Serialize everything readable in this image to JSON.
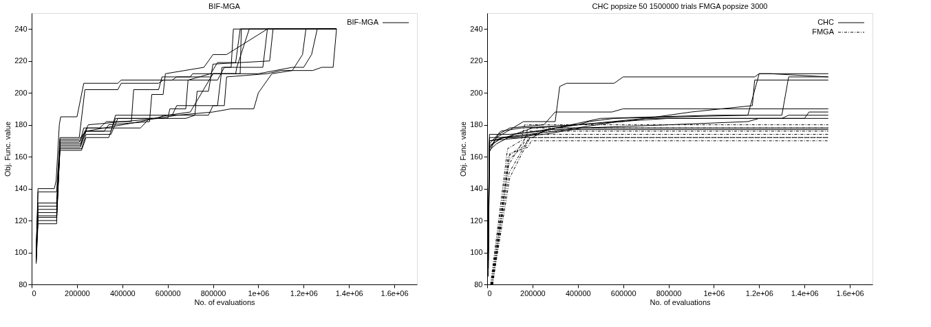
{
  "chart_data": [
    {
      "type": "line",
      "title": "BIF-MGA",
      "xlabel": "No. of evaluations",
      "ylabel": "Obj. Func. value",
      "xlim": [
        0,
        1700000
      ],
      "ylim": [
        80,
        250
      ],
      "xticks": [
        0,
        200000,
        400000,
        600000,
        800000,
        {
          "value": 1000000,
          "label": "1e+06"
        },
        {
          "value": 1200000,
          "label": "1.2e+06"
        },
        {
          "value": 1400000,
          "label": "1.4e+06"
        },
        {
          "value": 1600000,
          "label": "1.6e+06"
        }
      ],
      "yticks": [
        80,
        100,
        120,
        140,
        160,
        180,
        200,
        220,
        240
      ],
      "grid": false,
      "legend": "top right",
      "marker": "none",
      "series": [
        {
          "name": "BIF-MGA",
          "color": "#000000",
          "line_style": "solid",
          "x": [
            20000,
            28000,
            100000,
            108000,
            122000,
            128000,
            200000,
            230000,
            380000,
            395000,
            620000,
            640000,
            790000,
            800000,
            900000,
            905000,
            960000,
            1345000
          ],
          "values": [
            100,
            140,
            140,
            145,
            180,
            185,
            185,
            206,
            206,
            208,
            208,
            210,
            210,
            212,
            212,
            216,
            240,
            240
          ]
        },
        {
          "color": "#000000",
          "line_style": "solid",
          "x": [
            20000,
            28000,
            110000,
            125000,
            210000,
            235000,
            380000,
            395000,
            560000,
            580000,
            820000,
            850000,
            1020000,
            1040000,
            1345000
          ],
          "values": [
            95,
            138,
            138,
            172,
            172,
            202,
            202,
            206,
            206,
            208,
            208,
            216,
            216,
            240,
            240
          ]
        },
        {
          "color": "#000000",
          "line_style": "solid",
          "x": [
            20000,
            28000,
            110000,
            125000,
            215000,
            230000,
            300000,
            330000,
            440000,
            450000,
            560000,
            575000,
            700000,
            710000,
            920000,
            925000,
            1345000
          ],
          "values": [
            105,
            131,
            131,
            170,
            170,
            178,
            178,
            182,
            182,
            202,
            202,
            210,
            210,
            212,
            212,
            240,
            240
          ]
        },
        {
          "color": "#000000",
          "line_style": "solid",
          "x": [
            20000,
            28000,
            110000,
            125000,
            215000,
            235000,
            320000,
            340000,
            520000,
            530000,
            580000,
            590000,
            760000,
            800000,
            860000,
            1040000,
            1345000
          ],
          "values": [
            100,
            129,
            129,
            168,
            168,
            176,
            176,
            180,
            182,
            199,
            199,
            212,
            216,
            224,
            224,
            240,
            240
          ]
        },
        {
          "color": "#000000",
          "line_style": "solid",
          "x": [
            20000,
            28000,
            110000,
            125000,
            215000,
            240000,
            350000,
            370000,
            620000,
            640000,
            820000,
            840000,
            880000,
            890000,
            1345000
          ],
          "values": [
            98,
            127,
            127,
            166,
            166,
            176,
            176,
            186,
            186,
            192,
            192,
            216,
            216,
            240,
            240
          ]
        },
        {
          "color": "#000000",
          "line_style": "solid",
          "x": [
            20000,
            28000,
            110000,
            125000,
            220000,
            240000,
            350000,
            380000,
            600000,
            610000,
            680000,
            690000,
            790000,
            820000,
            900000,
            920000,
            1345000
          ],
          "values": [
            96,
            125,
            125,
            165,
            165,
            174,
            174,
            184,
            184,
            190,
            190,
            208,
            212,
            219,
            219,
            240,
            240
          ]
        },
        {
          "color": "#000000",
          "line_style": "solid",
          "x": [
            20000,
            28000,
            110000,
            125000,
            220000,
            240000,
            340000,
            370000,
            560000,
            580000,
            720000,
            730000,
            780000,
            800000,
            1050000,
            1065000,
            1345000
          ],
          "values": [
            94,
            122,
            122,
            164,
            164,
            172,
            172,
            184,
            184,
            186,
            186,
            201,
            201,
            218,
            220,
            240,
            240
          ]
        },
        {
          "color": "#000000",
          "line_style": "solid",
          "x": [
            20000,
            28000,
            110000,
            125000,
            215000,
            245000,
            480000,
            520000,
            680000,
            720000,
            780000,
            800000,
            850000,
            860000,
            1040000,
            1100000,
            1240000,
            1280000,
            1330000,
            1345000
          ],
          "values": [
            93,
            118,
            118,
            167,
            167,
            178,
            178,
            184,
            184,
            186,
            186,
            192,
            192,
            210,
            212,
            214,
            214,
            216,
            216,
            240
          ]
        },
        {
          "color": "#000000",
          "line_style": "solid",
          "x": [
            20000,
            28000,
            110000,
            125000,
            210000,
            250000,
            560000,
            640000,
            800000,
            880000,
            980000,
            1000000,
            1020000,
            1060000,
            1150000,
            1195000,
            1210000,
            1345000
          ],
          "values": [
            100,
            120,
            120,
            169,
            169,
            180,
            184,
            186,
            188,
            190,
            190,
            200,
            204,
            212,
            214,
            224,
            240,
            240
          ]
        },
        {
          "color": "#000000",
          "line_style": "solid",
          "x": [
            20000,
            28000,
            110000,
            125000,
            210000,
            240000,
            400000,
            480000,
            600000,
            700000,
            800000,
            1000000,
            1150000,
            1200000,
            1235000,
            1260000,
            1345000
          ],
          "values": [
            100,
            123,
            123,
            171,
            171,
            176,
            180,
            182,
            186,
            188,
            212,
            212,
            216,
            216,
            224,
            240,
            240
          ]
        }
      ]
    },
    {
      "type": "line",
      "title": "CHC popsize 50  1500000 trials   FMGA  popsize 3000",
      "xlabel": "No. of evaluations",
      "ylabel": "Obj. Func. value",
      "xlim": [
        0,
        1700000
      ],
      "ylim": [
        80,
        250
      ],
      "xticks": [
        0,
        200000,
        400000,
        600000,
        800000,
        {
          "value": 1000000,
          "label": "1e+06"
        },
        {
          "value": 1200000,
          "label": "1.2e+06"
        },
        {
          "value": 1400000,
          "label": "1.4e+06"
        },
        {
          "value": 1600000,
          "label": "1.6e+06"
        }
      ],
      "yticks": [
        80,
        100,
        120,
        140,
        160,
        180,
        200,
        220,
        240
      ],
      "grid": false,
      "legend": "top right",
      "marker": "none",
      "series": [
        {
          "name": "CHC",
          "color": "#000000",
          "line_style": "solid",
          "x": [
            5000,
            10000,
            40000,
            90000,
            160000,
            300000,
            320000,
            350000,
            560000,
            600000,
            1180000,
            1200000,
            1505000
          ],
          "values": [
            85,
            163,
            172,
            176,
            182,
            182,
            204,
            206,
            206,
            210,
            210,
            212,
            212
          ]
        },
        {
          "color": "#000000",
          "line_style": "solid",
          "x": [
            5000,
            10000,
            50000,
            100000,
            250000,
            300000,
            550000,
            600000,
            1505000
          ],
          "values": [
            95,
            165,
            174,
            178,
            180,
            188,
            188,
            190,
            190
          ]
        },
        {
          "color": "#000000",
          "line_style": "solid",
          "x": [
            5000,
            10000,
            60000,
            150000,
            400000,
            450000,
            560000,
            1150000,
            1200000,
            1250000,
            1505000
          ],
          "values": [
            100,
            168,
            176,
            178,
            180,
            182,
            184,
            186,
            212,
            212,
            210
          ]
        },
        {
          "color": "#000000",
          "line_style": "solid",
          "x": [
            5000,
            10000,
            80000,
            200000,
            600000,
            900000,
            1170000,
            1180000,
            1505000
          ],
          "values": [
            110,
            170,
            172,
            178,
            182,
            188,
            192,
            208,
            208
          ]
        },
        {
          "color": "#000000",
          "line_style": "solid",
          "x": [
            5000,
            10000,
            100000,
            240000,
            500000,
            1000000,
            1300000,
            1330000,
            1505000
          ],
          "values": [
            120,
            174,
            174,
            176,
            184,
            186,
            186,
            210,
            210
          ]
        },
        {
          "color": "#000000",
          "line_style": "solid",
          "x": [
            5000,
            10000,
            60000,
            300000,
            580000,
            800000,
            1400000,
            1420000,
            1505000
          ],
          "values": [
            100,
            166,
            172,
            176,
            182,
            184,
            184,
            188,
            188
          ]
        },
        {
          "color": "#000000",
          "line_style": "solid",
          "x": [
            5000,
            10000,
            40000,
            120000,
            400000,
            700000,
            1300000,
            1330000,
            1505000
          ],
          "values": [
            90,
            164,
            168,
            174,
            180,
            184,
            184,
            186,
            186
          ]
        },
        {
          "color": "#000000",
          "line_style": "solid",
          "x": [
            5000,
            10000,
            70000,
            250000,
            420000,
            800000,
            1150000,
            1200000,
            1505000
          ],
          "values": [
            105,
            167,
            172,
            174,
            178,
            180,
            182,
            184,
            184
          ]
        },
        {
          "color": "#000000",
          "line_style": "solid",
          "x": [
            5000,
            10000,
            160000,
            300000,
            1505000
          ],
          "values": [
            115,
            170,
            172,
            178,
            178
          ]
        },
        {
          "color": "#000000",
          "line_style": "solid",
          "x": [
            5000,
            10000,
            200000,
            260000,
            1505000
          ],
          "values": [
            110,
            172,
            172,
            177,
            177
          ]
        },
        {
          "name": "FMGA",
          "color": "#000000",
          "line_style": "dashdot",
          "x": [
            15000,
            90000,
            150000,
            165000,
            1505000
          ],
          "values": [
            80,
            165,
            170,
            180,
            180
          ]
        },
        {
          "color": "#000000",
          "line_style": "dashdot",
          "x": [
            17000,
            92000,
            160000,
            180000,
            1505000
          ],
          "values": [
            80,
            160,
            168,
            178,
            178
          ]
        },
        {
          "color": "#000000",
          "line_style": "dashdot",
          "x": [
            19000,
            95000,
            160000,
            185000,
            1505000
          ],
          "values": [
            80,
            155,
            170,
            176,
            176
          ]
        },
        {
          "color": "#000000",
          "line_style": "dashdot",
          "x": [
            21000,
            97000,
            170000,
            190000,
            1505000
          ],
          "values": [
            80,
            150,
            168,
            174,
            174
          ]
        },
        {
          "color": "#000000",
          "line_style": "dashdot",
          "x": [
            23000,
            100000,
            175000,
            190000,
            1505000
          ],
          "values": [
            80,
            147,
            168,
            172,
            172
          ]
        },
        {
          "color": "#000000",
          "line_style": "dashdot",
          "x": [
            25000,
            100000,
            180000,
            195000,
            1505000
          ],
          "values": [
            80,
            162,
            166,
            170,
            170
          ]
        },
        {
          "color": "#000000",
          "line_style": "dashdot",
          "x": [
            20000,
            95000,
            170000,
            190000,
            1505000
          ],
          "values": [
            80,
            158,
            168,
            172,
            172
          ]
        }
      ]
    }
  ]
}
